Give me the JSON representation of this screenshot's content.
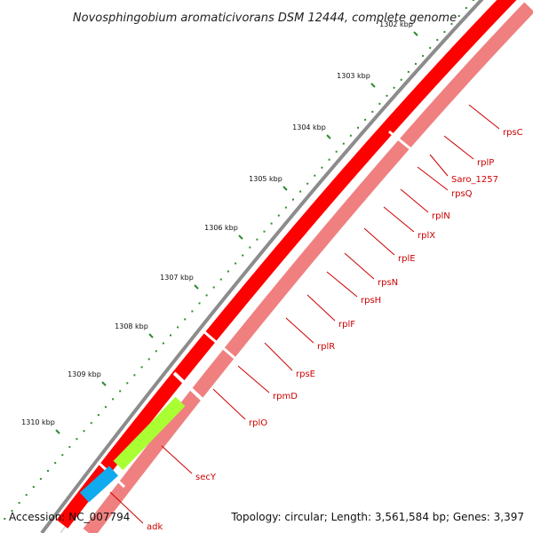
{
  "title": "Novosphingobium aromaticivorans DSM 12444, complete genome",
  "footer": {
    "accession": "Accession: NC_007794",
    "topology": "Topology: circular; Length: 3,561,584 bp; Genes: 3,397"
  },
  "colors": {
    "gene_forward": "#ff0000",
    "gene_reverse": "#f08080",
    "secY": "#aaff33",
    "adk": "#11aaee",
    "label": "#cc0000",
    "tick": "#2e8b2e",
    "backbone": "#8c8c8c"
  },
  "ticks": [
    {
      "label": "1302 kbp"
    },
    {
      "label": "1303 kbp"
    },
    {
      "label": "1304 kbp"
    },
    {
      "label": "1305 kbp"
    },
    {
      "label": "1306 kbp"
    },
    {
      "label": "1307 kbp"
    },
    {
      "label": "1308 kbp"
    },
    {
      "label": "1309 kbp"
    },
    {
      "label": "1310 kbp"
    }
  ],
  "genes": [
    {
      "name": "rpsC"
    },
    {
      "name": "rplP"
    },
    {
      "name": "Saro_1257"
    },
    {
      "name": "rpsQ"
    },
    {
      "name": "rplN"
    },
    {
      "name": "rplX"
    },
    {
      "name": "rplE"
    },
    {
      "name": "rpsN"
    },
    {
      "name": "rpsH"
    },
    {
      "name": "rplF"
    },
    {
      "name": "rplR"
    },
    {
      "name": "rpsE"
    },
    {
      "name": "rpmD"
    },
    {
      "name": "rplO"
    },
    {
      "name": "secY"
    },
    {
      "name": "adk"
    }
  ]
}
